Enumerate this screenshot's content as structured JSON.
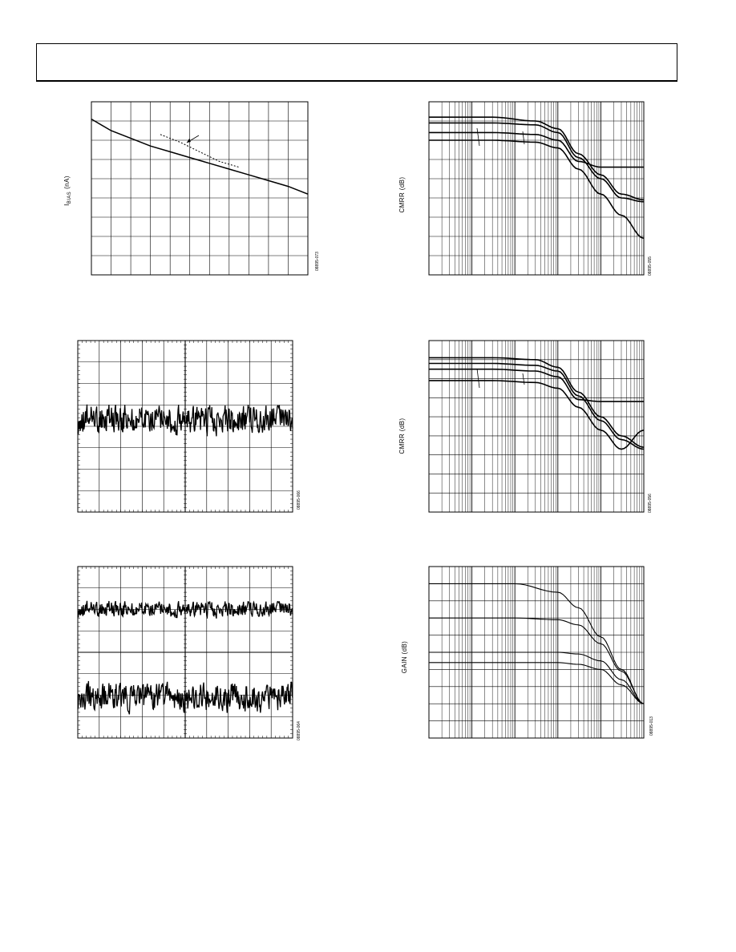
{
  "figures": {
    "ibias": {
      "figure_id": "08895-073",
      "chart_data": {
        "type": "line",
        "ylabel_main": "I",
        "ylabel_sub": "BIAS",
        "ylabel_unit": "(nA)",
        "grid": true,
        "xlim": [
          0,
          11
        ],
        "ylim": [
          0,
          9
        ],
        "series": [
          {
            "style": "solid",
            "x": [
              0,
              1,
              2,
              3,
              4,
              5,
              6,
              7,
              8,
              9,
              10,
              11
            ],
            "y": [
              8.1,
              7.5,
              7.1,
              6.7,
              6.4,
              6.1,
              5.8,
              5.5,
              5.2,
              4.9,
              4.6,
              4.2
            ]
          },
          {
            "style": "dashed",
            "x": [
              3.5,
              4.5,
              5.5,
              6.5,
              7.5
            ],
            "y": [
              7.3,
              6.9,
              6.4,
              5.9,
              5.6
            ]
          }
        ]
      }
    },
    "cmrr1": {
      "figure_id": "08895-055",
      "chart_data": {
        "type": "line",
        "ylabel": "CMRR (dB)",
        "x_scale": "log",
        "grid": true,
        "xlim": [
          1,
          100000
        ],
        "ylim": [
          0,
          9
        ],
        "series": [
          {
            "x": [
              1,
              30,
              300,
              1000,
              3000,
              10000,
              30000,
              100000
            ],
            "y": [
              8.2,
              8.2,
              8.0,
              7.6,
              6.3,
              5.2,
              4.2,
              3.9
            ]
          },
          {
            "x": [
              1,
              30,
              300,
              1000,
              3000,
              10000,
              30000,
              100000
            ],
            "y": [
              7.9,
              7.9,
              7.8,
              7.4,
              6.1,
              5.0,
              4.0,
              3.8
            ]
          },
          {
            "x": [
              1,
              30,
              300,
              1000,
              3000,
              10000,
              30000,
              100000
            ],
            "y": [
              7.4,
              7.4,
              7.3,
              7.0,
              5.9,
              5.6,
              5.6,
              5.6
            ]
          },
          {
            "x": [
              1,
              30,
              300,
              1000,
              3000,
              10000,
              30000,
              100000
            ],
            "y": [
              7.0,
              7.0,
              6.9,
              6.6,
              5.5,
              4.2,
              3.1,
              1.9
            ]
          }
        ]
      }
    },
    "noise1": {
      "figure_id": "08895-066",
      "chart_data": {
        "type": "line",
        "grid": true,
        "xlim": [
          0,
          10
        ],
        "ylim": [
          0,
          8
        ],
        "trace_center": 4.3,
        "trace_amplitude": 0.9
      }
    },
    "cmrr2": {
      "figure_id": "08895-056",
      "chart_data": {
        "type": "line",
        "ylabel": "CMRR (dB)",
        "x_scale": "log",
        "grid": true,
        "xlim": [
          1,
          100000
        ],
        "ylim": [
          0,
          9
        ],
        "series": [
          {
            "x": [
              1,
              30,
              300,
              1000,
              3000,
              10000,
              30000,
              100000
            ],
            "y": [
              8.1,
              8.1,
              8.0,
              7.6,
              6.3,
              5.0,
              4.0,
              3.4
            ]
          },
          {
            "x": [
              1,
              30,
              300,
              1000,
              3000,
              10000,
              30000,
              100000
            ],
            "y": [
              7.8,
              7.8,
              7.7,
              7.4,
              6.1,
              4.8,
              3.8,
              3.3
            ]
          },
          {
            "x": [
              1,
              30,
              300,
              1000,
              3000,
              10000,
              30000,
              100000
            ],
            "y": [
              7.5,
              7.5,
              7.4,
              7.1,
              5.9,
              5.8,
              5.8,
              5.8
            ]
          },
          {
            "x": [
              1,
              30,
              300,
              1000,
              3000,
              10000,
              30000,
              100000
            ],
            "y": [
              6.9,
              6.9,
              6.8,
              6.5,
              5.5,
              4.3,
              3.3,
              4.3
            ]
          }
        ]
      }
    },
    "noise2": {
      "figure_id": "08895-064",
      "chart_data": {
        "type": "line",
        "grid": true,
        "xlim": [
          0,
          10
        ],
        "ylim": [
          0,
          8
        ],
        "traces": [
          {
            "center": 6.0,
            "amplitude": 0.5
          },
          {
            "center": 1.9,
            "amplitude": 0.9
          }
        ]
      }
    },
    "gain": {
      "figure_id": "08895-013",
      "chart_data": {
        "type": "line",
        "ylabel": "GAIN (dB)",
        "x_scale": "log",
        "grid": true,
        "xlim": [
          1,
          100000
        ],
        "ylim": [
          0,
          10
        ],
        "series": [
          {
            "x": [
              1,
              100,
              1000,
              3000,
              10000,
              30000,
              100000
            ],
            "y": [
              9.0,
              9.0,
              8.5,
              7.6,
              5.9,
              4.0,
              2.0
            ]
          },
          {
            "x": [
              1,
              100,
              1000,
              3000,
              10000,
              30000,
              100000
            ],
            "y": [
              7.0,
              7.0,
              6.9,
              6.6,
              5.5,
              3.9,
              2.0
            ]
          },
          {
            "x": [
              1,
              100,
              1000,
              3000,
              10000,
              30000,
              100000
            ],
            "y": [
              5.0,
              5.0,
              5.0,
              4.9,
              4.5,
              3.4,
              2.0
            ]
          },
          {
            "x": [
              1,
              100,
              1000,
              3000,
              10000,
              30000,
              100000
            ],
            "y": [
              4.4,
              4.4,
              4.4,
              4.3,
              4.0,
              3.1,
              2.0
            ]
          }
        ]
      }
    }
  }
}
